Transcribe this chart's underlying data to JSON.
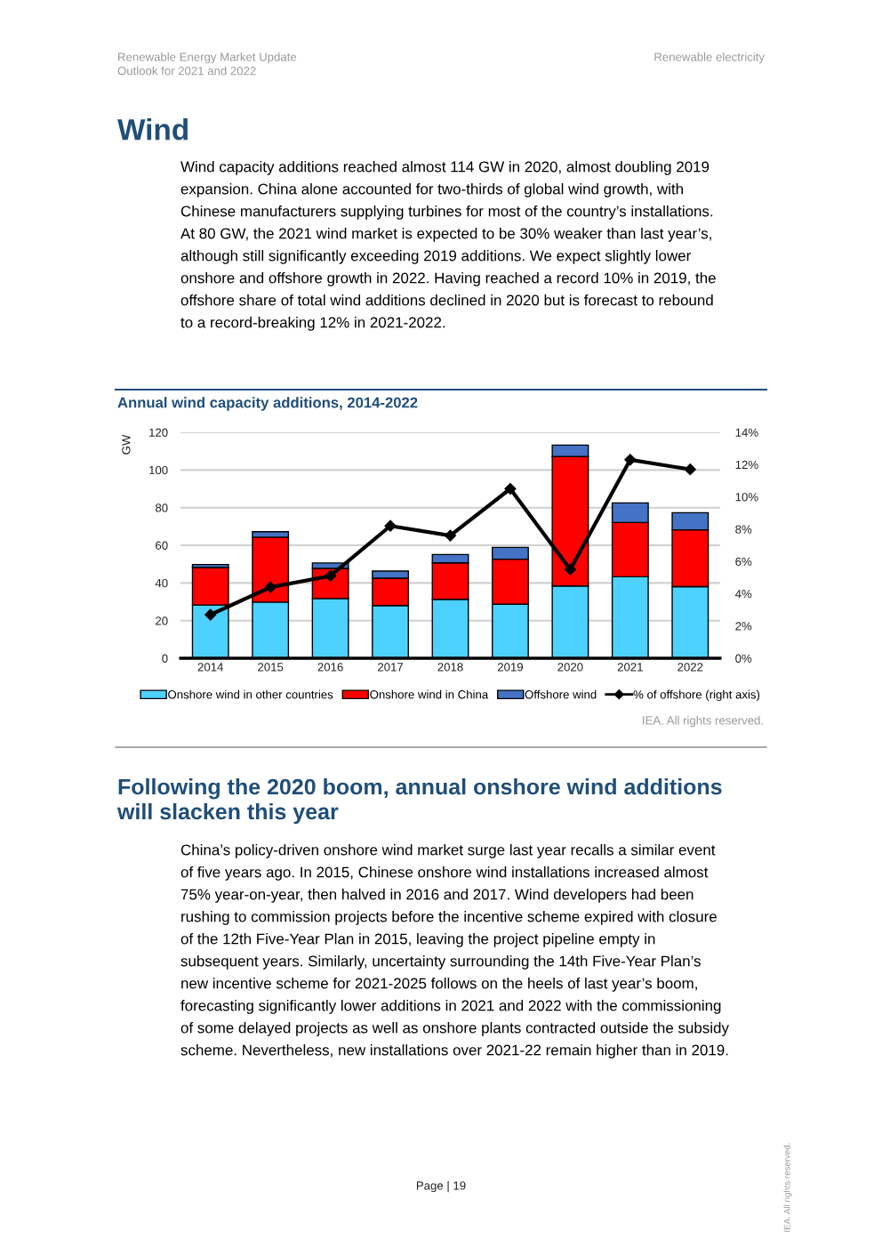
{
  "chart_data": {
    "type": "bar",
    "stacked": true,
    "title": "Annual wind capacity additions, 2014-2022",
    "ylabel": "GW",
    "categories": [
      "2014",
      "2015",
      "2016",
      "2017",
      "2018",
      "2019",
      "2020",
      "2021",
      "2022"
    ],
    "series": [
      {
        "name": "Onshore wind in other countries",
        "color": "#4dd2ff",
        "values": [
          28.3,
          29.8,
          31.7,
          28.0,
          31.3,
          28.7,
          38.4,
          43.3,
          38.0
        ]
      },
      {
        "name": "Onshore wind in China",
        "color": "#ff0000",
        "values": [
          19.9,
          34.5,
          16.0,
          14.5,
          19.4,
          23.9,
          68.7,
          28.8,
          30.2
        ]
      },
      {
        "name": "Offshore wind",
        "color": "#4472c4",
        "values": [
          1.6,
          2.9,
          2.9,
          3.8,
          4.4,
          6.3,
          6.1,
          10.4,
          9.1
        ]
      },
      {
        "name": "% of offshore (right axis)",
        "type": "line",
        "axis": "y2",
        "color": "#000000",
        "marker": "diamond",
        "values": [
          2.7,
          4.4,
          5.1,
          8.2,
          7.6,
          10.5,
          5.5,
          12.3,
          11.7
        ]
      }
    ],
    "ylim": [
      0,
      120
    ],
    "yticks": [
      0,
      20,
      40,
      60,
      80,
      100,
      120
    ],
    "y2lim": [
      0,
      14
    ],
    "y2ticks": [
      {
        "value": 0,
        "label": "0%"
      },
      {
        "value": 2,
        "label": "2%"
      },
      {
        "value": 4,
        "label": "4%"
      },
      {
        "value": 6,
        "label": "6%"
      },
      {
        "value": 8,
        "label": "8%"
      },
      {
        "value": 10,
        "label": "10%"
      },
      {
        "value": 12,
        "label": "12%"
      },
      {
        "value": 14,
        "label": "14%"
      }
    ],
    "grid": "y",
    "legend": "bottom",
    "annotations": [
      "Renewable Energy Market Update\nOutlook for 2021 and 2022",
      "Renewable electricity",
      "Wind",
      "Wind capacity additions reached almost 114 GW in 2020, almost doubling 2019\nexpansion. China alone accounted for two-thirds of global wind growth, with\nChinese manufacturers supplying turbines for most of the country’s installations.\nAt 80 GW, the 2021 wind market is expected to be 30% weaker than last year’s,\nalthough still significantly exceeding 2019 additions. We expect slightly lower\nonshore and offshore growth in 2022. Having reached a record 10% in 2019, the\noffshore share of total wind additions declined in 2020 but is forecast to rebound\nto a record-breaking 12% in 2021-2022.",
      "IEA. All rights reserved.",
      "Following the 2020 boom, annual onshore wind additions\nwill slacken this year",
      "China’s policy-driven onshore wind market surge last year recalls a similar event\nof five years ago. In 2015, Chinese onshore wind installations increased almost\n75% year-on-year, then halved in 2016 and 2017. Wind developers had been\nrushing to commission projects before the incentive scheme expired with closure\nof the 12th Five-Year Plan in 2015, leaving the project pipeline empty in\nsubsequent years. Similarly, uncertainty surrounding the 14th Five-Year Plan’s\nnew incentive scheme for 2021-2025 follows on the heels of last year’s boom,\nforecasting significantly lower additions in 2021 and 2022 with the commissioning\nof some delayed projects as well as onshore plants contracted outside the subsidy\nscheme. Nevertheless, new installations over 2021-22 remain higher than in 2019.",
      "Page | 19",
      "IEA. All rights reserved."
    ]
  }
}
